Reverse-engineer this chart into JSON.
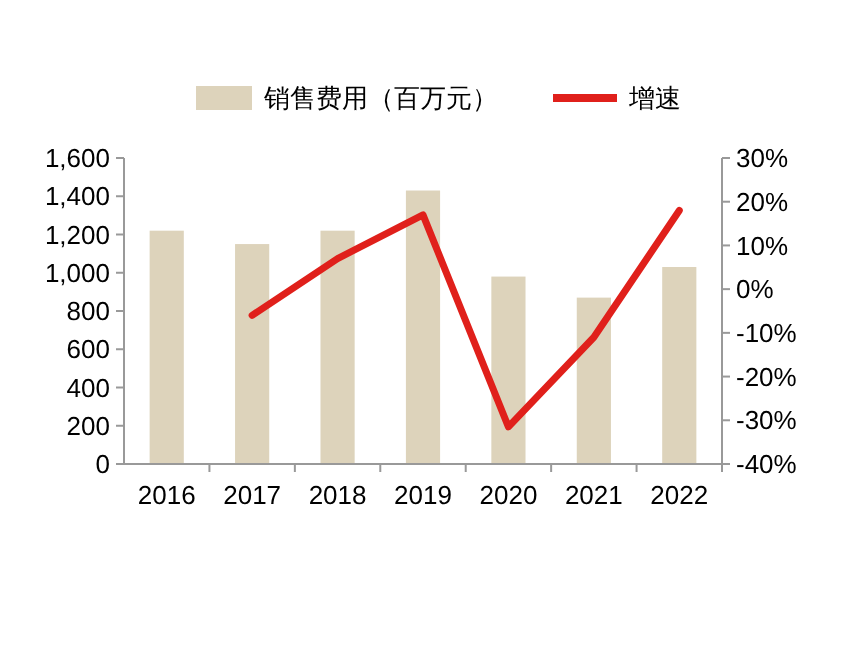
{
  "chart_data": {
    "type": "bar",
    "categories": [
      "2016",
      "2017",
      "2018",
      "2019",
      "2020",
      "2021",
      "2022"
    ],
    "series": [
      {
        "name": "销售费用（百万元）",
        "color": "#ddd3bb",
        "values": [
          1220,
          1150,
          1220,
          1430,
          980,
          870,
          1030
        ]
      },
      {
        "name": "增速",
        "type": "line",
        "axis": "y2",
        "color": "#e0201b",
        "values": [
          null,
          -6,
          7,
          17,
          -31.5,
          -11,
          18
        ]
      }
    ],
    "ylim": [
      0,
      1600
    ],
    "yticks": [
      0,
      200,
      400,
      600,
      800,
      {
        "value": 1000,
        "label": "1,000"
      },
      {
        "value": 1200,
        "label": "1,200"
      },
      {
        "value": 1400,
        "label": "1,400"
      },
      {
        "value": 1600,
        "label": "1,600"
      }
    ],
    "y2lim": [
      -40,
      30
    ],
    "y2ticks": [
      {
        "value": -40,
        "label": "-40%"
      },
      {
        "value": -30,
        "label": "-30%"
      },
      {
        "value": -20,
        "label": "-20%"
      },
      {
        "value": -10,
        "label": "-10%"
      },
      {
        "value": 0,
        "label": "0%"
      },
      {
        "value": 10,
        "label": "10%"
      },
      {
        "value": 20,
        "label": "20%"
      },
      {
        "value": 30,
        "label": "30%"
      }
    ],
    "legend": "top",
    "grid": false
  }
}
